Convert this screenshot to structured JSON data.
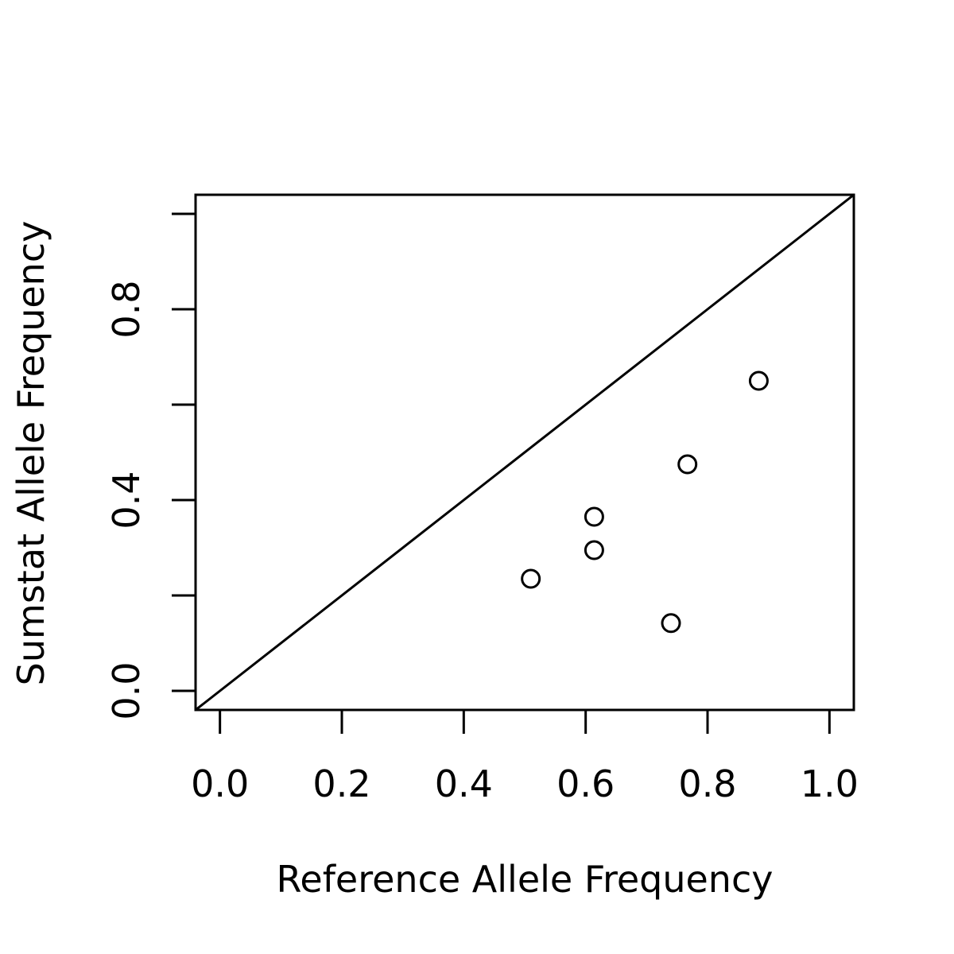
{
  "chart_data": {
    "type": "scatter",
    "title": "",
    "xlabel": "Reference Allele Frequency",
    "ylabel": "Sumstat Allele Frequency",
    "xlim": [
      -0.04,
      1.04
    ],
    "ylim": [
      -0.04,
      1.04
    ],
    "x_ticks": [
      0.0,
      0.2,
      0.4,
      0.6,
      0.8,
      1.0
    ],
    "x_tick_labels": [
      "0.0",
      "0.2",
      "0.4",
      "0.6",
      "0.8",
      "1.0"
    ],
    "y_ticks": [
      0.0,
      0.2,
      0.4,
      0.6,
      0.8,
      1.0
    ],
    "y_tick_labels": [
      "0.0",
      "",
      "0.4",
      "",
      "0.8",
      ""
    ],
    "reference_line": {
      "type": "identity",
      "intercept": 0,
      "slope": 1
    },
    "series": [
      {
        "marker": "open-circle",
        "points": [
          {
            "x": 0.51,
            "y": 0.235
          },
          {
            "x": 0.614,
            "y": 0.295
          },
          {
            "x": 0.614,
            "y": 0.365
          },
          {
            "x": 0.74,
            "y": 0.142
          },
          {
            "x": 0.767,
            "y": 0.475
          },
          {
            "x": 0.884,
            "y": 0.65
          }
        ]
      }
    ],
    "grid": false,
    "legend": "none"
  }
}
